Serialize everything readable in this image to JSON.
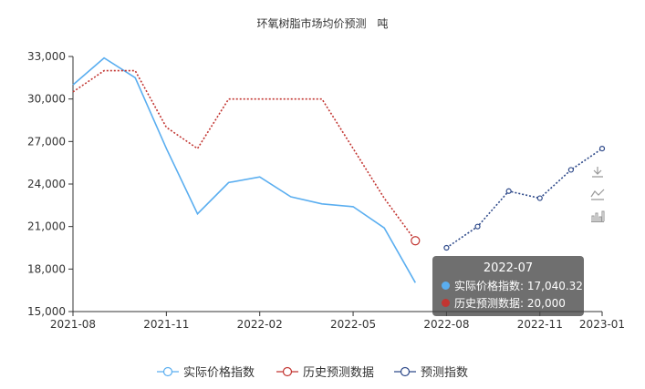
{
  "chart_data": {
    "type": "line",
    "title": "环氧树脂市场均价预测　吨",
    "categories": [
      "2021-08",
      "2021-09",
      "2021-10",
      "2021-11",
      "2021-12",
      "2022-01",
      "2022-02",
      "2022-03",
      "2022-04",
      "2022-05",
      "2022-06",
      "2022-07",
      "2022-08",
      "2022-09",
      "2022-10",
      "2022-11",
      "2022-12",
      "2023-01"
    ],
    "x_tick_labels": [
      "2021-08",
      "2021-11",
      "2022-02",
      "2022-05",
      "2022-08",
      "2022-11",
      "2023-01"
    ],
    "ylim": [
      15000,
      33000
    ],
    "y_ticks": [
      15000,
      18000,
      21000,
      24000,
      27000,
      30000,
      33000
    ],
    "y_tick_labels": [
      "15,000",
      "18,000",
      "21,000",
      "24,000",
      "27,000",
      "30,000",
      "33,000"
    ],
    "grid": false,
    "legend_position": "bottom",
    "series": [
      {
        "name": "实际价格指数",
        "color": "#5aaef0",
        "style": "solid",
        "values": [
          31000,
          32900,
          31500,
          26500,
          21900,
          24100,
          24500,
          23100,
          22600,
          22400,
          20900,
          17040.32,
          null,
          null,
          null,
          null,
          null,
          null
        ]
      },
      {
        "name": "历史预测数据",
        "color": "#c23531",
        "style": "dotted",
        "values": [
          30500,
          32000,
          32000,
          28000,
          26500,
          30000,
          30000,
          30000,
          30000,
          26500,
          23000,
          20000,
          null,
          null,
          null,
          null,
          null,
          null
        ]
      },
      {
        "name": "预测指数",
        "color": "#2f4a8a",
        "style": "dotted",
        "values": [
          null,
          null,
          null,
          null,
          null,
          null,
          null,
          null,
          null,
          null,
          null,
          null,
          19500,
          21000,
          23500,
          23000,
          25000,
          26500
        ]
      }
    ],
    "tooltip": {
      "title": "2022-07",
      "rows": [
        {
          "label": "实际价格指数: 17,040.32",
          "color": "#5aaef0"
        },
        {
          "label": "历史预测数据: 20,000",
          "color": "#c23531"
        }
      ]
    }
  },
  "toolbox": [
    {
      "icon": "download-icon"
    },
    {
      "icon": "line-chart-icon"
    },
    {
      "icon": "bar-chart-icon"
    }
  ]
}
